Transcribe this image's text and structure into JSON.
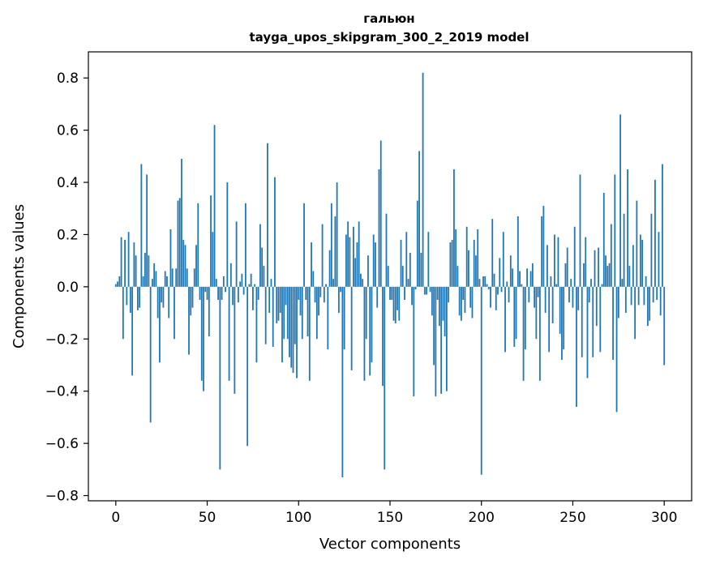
{
  "chart_data": {
    "type": "bar",
    "title": "гальюн",
    "subtitle": "tayga_upos_skipgram_300_2_2019 model",
    "xlabel": "Vector components",
    "ylabel": "Components values",
    "xlim": [
      -15,
      315
    ],
    "ylim": [
      -0.82,
      0.9
    ],
    "xticks": [
      0,
      50,
      100,
      150,
      200,
      250,
      300
    ],
    "xtick_labels": [
      "0",
      "50",
      "100",
      "150",
      "200",
      "250",
      "300"
    ],
    "yticks": [
      -0.8,
      -0.6,
      -0.4,
      -0.2,
      0.0,
      0.2,
      0.4,
      0.6,
      0.8
    ],
    "ytick_labels": [
      "−0.8",
      "−0.6",
      "−0.4",
      "−0.2",
      "0.0",
      "0.2",
      "0.4",
      "0.6",
      "0.8"
    ],
    "bar_color": "#1f77b4",
    "grid": false,
    "values": [
      0.01,
      0.02,
      0.04,
      0.19,
      -0.2,
      0.18,
      -0.07,
      0.21,
      -0.1,
      -0.34,
      0.17,
      0.12,
      -0.09,
      -0.08,
      0.47,
      0.04,
      0.13,
      0.43,
      0.12,
      -0.52,
      0.03,
      0.09,
      0.06,
      -0.12,
      -0.29,
      -0.06,
      -0.08,
      0.06,
      0.04,
      -0.12,
      0.22,
      0.07,
      -0.2,
      0.07,
      0.33,
      0.34,
      0.49,
      0.18,
      0.16,
      0.07,
      -0.26,
      -0.11,
      -0.08,
      0.07,
      0.16,
      0.32,
      -0.05,
      -0.36,
      -0.4,
      -0.02,
      -0.05,
      -0.19,
      0.35,
      0.21,
      0.62,
      0.03,
      -0.05,
      -0.7,
      -0.05,
      0.04,
      -0.02,
      0.4,
      -0.36,
      0.09,
      -0.07,
      -0.41,
      0.25,
      -0.06,
      0.02,
      0.05,
      -0.03,
      0.32,
      -0.61,
      0.01,
      0.05,
      -0.09,
      0.01,
      -0.29,
      -0.05,
      0.24,
      0.15,
      0.08,
      -0.22,
      0.55,
      -0.1,
      0.03,
      -0.23,
      0.42,
      -0.14,
      -0.13,
      -0.1,
      -0.29,
      -0.2,
      -0.07,
      -0.2,
      -0.27,
      -0.31,
      -0.33,
      -0.22,
      -0.35,
      -0.05,
      -0.11,
      -0.2,
      0.32,
      -0.05,
      -0.19,
      -0.36,
      0.17,
      0.06,
      -0.06,
      -0.2,
      -0.11,
      -0.04,
      0.24,
      -0.06,
      0.01,
      -0.24,
      0.14,
      0.32,
      0.03,
      0.27,
      0.4,
      -0.1,
      -0.02,
      -0.73,
      -0.24,
      0.2,
      0.25,
      0.19,
      -0.32,
      0.23,
      0.11,
      0.17,
      0.25,
      0.05,
      0.03,
      -0.36,
      -0.2,
      0.12,
      -0.34,
      -0.29,
      0.2,
      0.17,
      -0.08,
      0.45,
      0.56,
      -0.38,
      -0.7,
      0.28,
      0.08,
      -0.05,
      -0.05,
      -0.13,
      -0.14,
      -0.09,
      -0.13,
      0.18,
      0.08,
      -0.05,
      0.21,
      0.03,
      0.13,
      -0.07,
      -0.42,
      -0.01,
      0.33,
      0.52,
      0.13,
      0.82,
      -0.03,
      -0.03,
      0.21,
      -0.02,
      -0.11,
      -0.3,
      -0.42,
      -0.05,
      -0.15,
      -0.41,
      -0.13,
      -0.19,
      -0.4,
      -0.06,
      0.17,
      0.18,
      0.45,
      0.22,
      0.08,
      -0.11,
      -0.13,
      -0.05,
      -0.1,
      0.23,
      0.14,
      -0.08,
      -0.12,
      0.18,
      0.12,
      0.22,
      0.03,
      -0.72,
      0.04,
      0.04,
      0.01,
      -0.01,
      -0.08,
      0.26,
      0.05,
      -0.09,
      -0.03,
      0.11,
      -0.02,
      0.21,
      -0.25,
      0.02,
      -0.06,
      0.12,
      0.07,
      -0.23,
      -0.2,
      0.27,
      0.06,
      0.01,
      -0.36,
      -0.24,
      0.07,
      -0.06,
      0.06,
      0.09,
      -0.08,
      -0.2,
      -0.04,
      -0.36,
      0.27,
      0.31,
      -0.1,
      0.16,
      -0.25,
      0.04,
      -0.14,
      0.2,
      0.01,
      0.19,
      -0.18,
      -0.28,
      -0.24,
      0.09,
      0.15,
      -0.06,
      0.03,
      -0.08,
      0.23,
      -0.46,
      -0.09,
      0.43,
      -0.27,
      0.09,
      0.19,
      -0.35,
      -0.06,
      0.03,
      -0.27,
      0.14,
      -0.15,
      0.15,
      -0.25,
      0.01,
      0.36,
      0.12,
      0.08,
      0.09,
      0.24,
      -0.28,
      0.43,
      -0.48,
      -0.12,
      0.66,
      0.03,
      0.28,
      -0.1,
      0.45,
      0.08,
      -0.07,
      0.16,
      -0.2,
      0.33,
      -0.07,
      0.2,
      0.18,
      -0.07,
      0.04,
      -0.15,
      -0.13,
      0.28,
      -0.06,
      0.41,
      -0.05,
      0.21,
      -0.11,
      0.47,
      -0.3
    ]
  }
}
